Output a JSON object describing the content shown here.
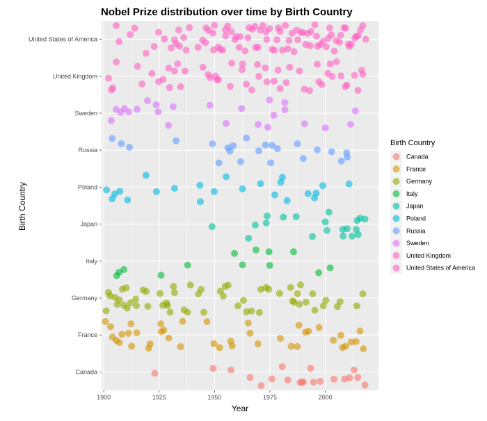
{
  "chart_data": {
    "type": "scatter",
    "title": "Nobel Prize distribution over time by Birth Country",
    "xlabel": "Year",
    "ylabel": "Birth Country",
    "xlim": [
      1899,
      2024
    ],
    "x_ticks": [
      1900,
      1925,
      1950,
      1975,
      2000
    ],
    "categories": [
      "Canada",
      "France",
      "Germany",
      "Italy",
      "Japan",
      "Poland",
      "Russia",
      "Sweden",
      "United Kingdom",
      "United States of America"
    ],
    "legend_title": "Birth Country",
    "legend_position": "right",
    "grid": true,
    "jitter": "vertical",
    "series": [
      {
        "name": "Canada",
        "color": "#F8766D",
        "x": [
          1923,
          1949,
          1957,
          1966,
          1971,
          1976,
          1981,
          1983,
          1989,
          1989,
          1990,
          1993,
          1995,
          1998,
          2004,
          2009,
          2011,
          2013,
          2015,
          2018
        ]
      },
      {
        "name": "France",
        "color": "#D39200",
        "x": [
          1901,
          1903,
          1904,
          1906,
          1907,
          1908,
          1911,
          1912,
          1913,
          1915,
          1920,
          1921,
          1926,
          1926,
          1927,
          1929,
          1935,
          1936,
          1947,
          1950,
          1952,
          1957,
          1958,
          1965,
          1966,
          1970,
          1980,
          1985,
          1987,
          1988,
          1991,
          1992,
          1997,
          2004,
          2007,
          2008,
          2009,
          2012,
          2014,
          2016,
          2017
        ]
      },
      {
        "name": "Germany",
        "color": "#93AA00",
        "x": [
          1901,
          1902,
          1903,
          1905,
          1906,
          1907,
          1908,
          1909,
          1910,
          1911,
          1912,
          1914,
          1915,
          1918,
          1919,
          1920,
          1925,
          1927,
          1928,
          1929,
          1930,
          1931,
          1932,
          1936,
          1938,
          1939,
          1943,
          1944,
          1945,
          1953,
          1954,
          1955,
          1956,
          1961,
          1963,
          1964,
          1967,
          1970,
          1971,
          1973,
          1974,
          1979,
          1984,
          1985,
          1986,
          1987,
          1988,
          1989,
          1991,
          1994,
          1995,
          1999,
          2000,
          2005,
          2007,
          2014,
          2017
        ]
      },
      {
        "name": "Italy",
        "color": "#00BA38",
        "x": [
          1906,
          1907,
          1909,
          1926,
          1938,
          1959,
          1963,
          1969,
          1975,
          1975,
          1986,
          1997,
          2002
        ]
      },
      {
        "name": "Japan",
        "color": "#00C19F",
        "x": [
          1949,
          1965,
          1968,
          1973,
          1974,
          1981,
          1987,
          1994,
          2000,
          2001,
          2002,
          2008,
          2008,
          2010,
          2012,
          2014,
          2014,
          2015,
          2016,
          2018
        ]
      },
      {
        "name": "Poland",
        "color": "#00B9E3",
        "x": [
          1901,
          1904,
          1905,
          1907,
          1911,
          1919,
          1924,
          1932,
          1943,
          1944,
          1950,
          1955,
          1963,
          1971,
          1977,
          1980,
          1981,
          1983,
          1992,
          1995,
          1996,
          1999,
          2011
        ]
      },
      {
        "name": "Russia",
        "color": "#619CFF",
        "x": [
          1904,
          1908,
          1912,
          1933,
          1949,
          1952,
          1956,
          1957,
          1958,
          1962,
          1964,
          1970,
          1973,
          1975,
          1976,
          1978,
          1987,
          1990,
          1996,
          2003,
          2007,
          2010,
          2010
        ]
      },
      {
        "name": "Sweden",
        "color": "#DB72FB",
        "x": [
          1903,
          1906,
          1908,
          1909,
          1911,
          1915,
          1920,
          1924,
          1925,
          1929,
          1931,
          1948,
          1955,
          1962,
          1970,
          1974,
          1975,
          1977,
          1982,
          1982,
          1991,
          2000,
          2011,
          2014
        ]
      },
      {
        "name": "United Kingdom",
        "color": "#FF61C3",
        "x": [
          1902,
          1903,
          1904,
          1906,
          1915,
          1917,
          1922,
          1925,
          1927,
          1929,
          1930,
          1932,
          1933,
          1935,
          1937,
          1945,
          1947,
          1948,
          1950,
          1951,
          1952,
          1957,
          1958,
          1962,
          1963,
          1964,
          1967,
          1969,
          1970,
          1973,
          1974,
          1977,
          1979,
          1980,
          1982,
          1984,
          1988,
          1991,
          1993,
          1996,
          1997,
          1998,
          2001,
          2002,
          2003,
          2005,
          2007,
          2009,
          2010,
          2013,
          2015,
          2016,
          2017
        ]
      },
      {
        "name": "United States of America",
        "color": "#FF61C3",
        "x": [
          1906,
          1907,
          1912,
          1914,
          1919,
          1923,
          1925,
          1927,
          1930,
          1932,
          1933,
          1934,
          1934,
          1936,
          1937,
          1939,
          1943,
          1945,
          1946,
          1946,
          1947,
          1949,
          1950,
          1950,
          1952,
          1953,
          1954,
          1955,
          1955,
          1956,
          1958,
          1959,
          1960,
          1961,
          1962,
          1964,
          1965,
          1966,
          1967,
          1968,
          1969,
          1970,
          1971,
          1972,
          1973,
          1974,
          1975,
          1976,
          1977,
          1978,
          1979,
          1980,
          1981,
          1982,
          1983,
          1984,
          1985,
          1986,
          1987,
          1988,
          1989,
          1990,
          1991,
          1992,
          1993,
          1994,
          1995,
          1996,
          1997,
          1998,
          1999,
          2000,
          2001,
          2002,
          2003,
          2004,
          2005,
          2006,
          2007,
          2008,
          2009,
          2010,
          2011,
          2012,
          2013,
          2014,
          2015,
          2016,
          2017,
          2018
        ]
      }
    ]
  }
}
